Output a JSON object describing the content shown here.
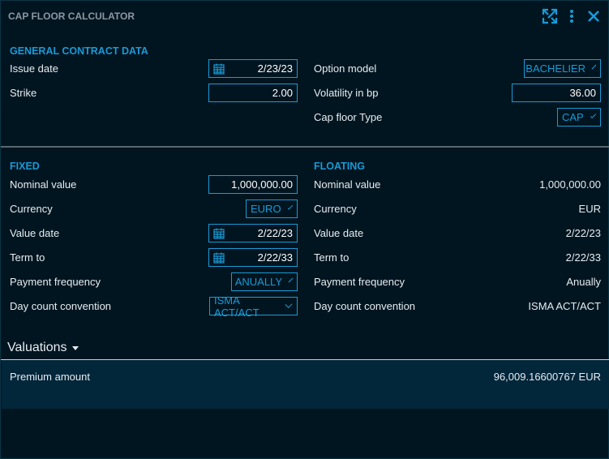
{
  "window": {
    "title": "CAP FLOOR CALCULATOR",
    "icons": [
      "expand-icon",
      "more-vertical-icon",
      "close-icon"
    ]
  },
  "colors": {
    "accent": "#1a9ad6",
    "background": "#011520",
    "valuation_row": "#02263a"
  },
  "general": {
    "heading": "GENERAL CONTRACT DATA",
    "issue_date": {
      "label": "Issue date",
      "value": "2/23/23"
    },
    "strike": {
      "label": "Strike",
      "value": "2.00"
    },
    "option_model": {
      "label": "Option model",
      "value": "BACHELIER"
    },
    "volatility": {
      "label": "Volatility in bp",
      "value": "36.00"
    },
    "cap_floor_type": {
      "label": "Cap floor Type",
      "value": "CAP"
    }
  },
  "fixed": {
    "heading": "FIXED",
    "nominal": {
      "label": "Nominal value",
      "value": "1,000,000.00"
    },
    "currency": {
      "label": "Currency",
      "value": "EURO"
    },
    "value_date": {
      "label": "Value date",
      "value": "2/22/23"
    },
    "term_to": {
      "label": "Term to",
      "value": "2/22/33"
    },
    "payment_frequency": {
      "label": "Payment frequency",
      "value": "ANUALLY"
    },
    "day_count": {
      "label": "Day count convention",
      "value": "ISMA ACT/ACT"
    }
  },
  "floating": {
    "heading": "FLOATING",
    "nominal": {
      "label": "Nominal value",
      "value": "1,000,000.00"
    },
    "currency": {
      "label": "Currency",
      "value": "EUR"
    },
    "value_date": {
      "label": "Value date",
      "value": "2/22/23"
    },
    "term_to": {
      "label": "Term to",
      "value": "2/22/33"
    },
    "payment_frequency": {
      "label": "Payment frequency",
      "value": "Anually"
    },
    "day_count": {
      "label": "Day count convention",
      "value": "ISMA ACT/ACT"
    }
  },
  "valuations": {
    "heading": "Valuations",
    "premium": {
      "label": "Premium amount",
      "value": "96,009.16600767 EUR"
    }
  }
}
